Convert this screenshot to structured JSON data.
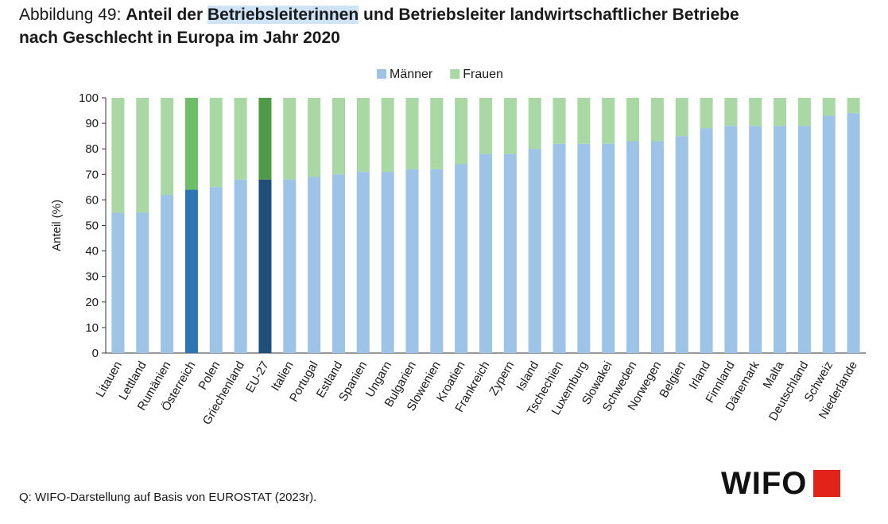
{
  "title": {
    "prefix": "Abbildung 49: ",
    "part1": "Anteil der ",
    "highlight": "Betriebsleiterinnen",
    "part2": " und Betriebsleiter landwirtschaftlicher Betriebe",
    "line2": "nach Geschlecht in Europa im Jahr 2020"
  },
  "source": "Q:  WIFO-Darstellung auf Basis von EUROSTAT (2023r).",
  "logo": {
    "text": "WIFO",
    "mark_color": "#e2231a"
  },
  "chart_data": {
    "type": "bar",
    "stacked": true,
    "ylabel": "Anteil (%)",
    "xlabel": "",
    "ylim": [
      0,
      100
    ],
    "yticks": [
      0,
      10,
      20,
      30,
      40,
      50,
      60,
      70,
      80,
      90,
      100
    ],
    "legend_position": "top-center",
    "categories": [
      "Litauen",
      "Lettland",
      "Rumänien",
      "Österreich",
      "Polen",
      "Griechenland",
      "EU-27",
      "Italien",
      "Portugal",
      "Estland",
      "Spanien",
      "Ungarn",
      "Bulgarien",
      "Slowenien",
      "Kroatien",
      "Frankreich",
      "Zypern",
      "Island",
      "Tschechien",
      "Luxemburg",
      "Slowakei",
      "Schweden",
      "Norwegen",
      "Belgien",
      "Irland",
      "Finnland",
      "Dänemark",
      "Malta",
      "Deutschland",
      "Schweiz",
      "Niederlande"
    ],
    "series": [
      {
        "name": "Männer",
        "color": "#9dc3e6",
        "values": [
          55,
          55,
          62,
          64,
          65,
          68,
          68,
          68,
          69,
          70,
          71,
          71,
          72,
          72,
          74,
          78,
          78,
          80,
          82,
          82,
          82,
          83,
          83,
          85,
          88,
          89,
          89,
          89,
          89,
          93,
          94
        ]
      },
      {
        "name": "Frauen",
        "color": "#a9d8a4",
        "values": [
          45,
          45,
          38,
          36,
          35,
          32,
          32,
          32,
          31,
          30,
          29,
          29,
          28,
          28,
          26,
          22,
          22,
          20,
          18,
          18,
          18,
          17,
          17,
          15,
          12,
          11,
          11,
          11,
          11,
          7,
          6
        ]
      }
    ],
    "highlights": {
      "Österreich": {
        "Männer": "#2e75b6",
        "Frauen": "#6cbf66"
      },
      "EU-27": {
        "Männer": "#1f4e79",
        "Frauen": "#4e9b47"
      }
    }
  }
}
